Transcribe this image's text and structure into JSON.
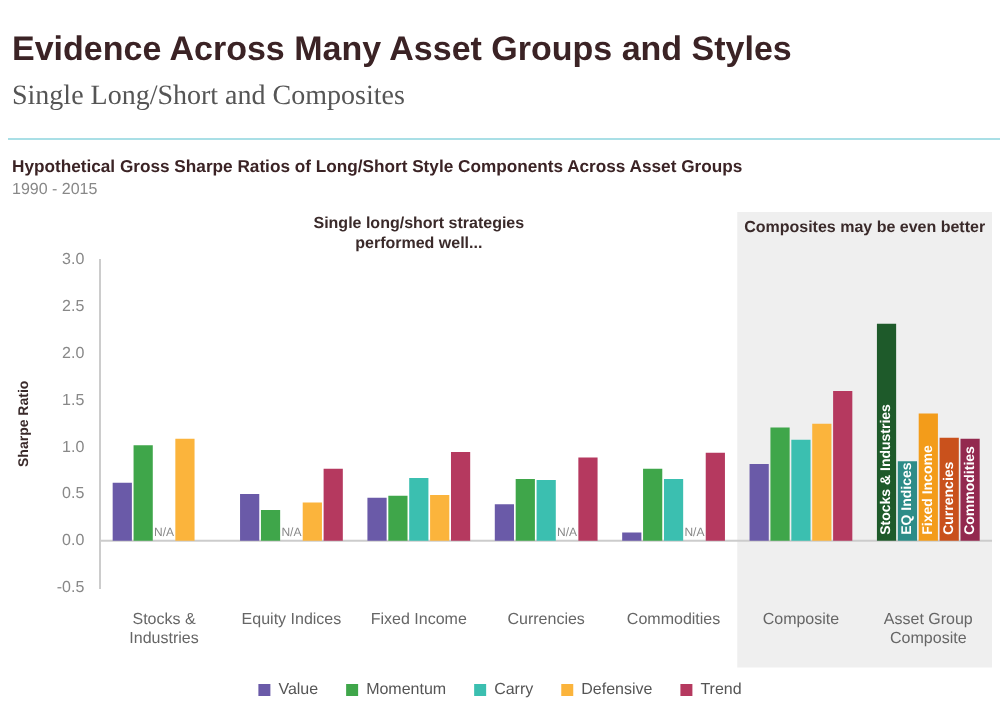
{
  "chart_data": {
    "type": "bar",
    "title": "Evidence Across Many Asset Groups and Styles",
    "subtitle": "Single Long/Short and Composites",
    "annotations": [
      "Hypothetical Gross Sharpe Ratios of Long/Short Style Components Across Asset Groups",
      "1990 - 2015",
      "Single long/short strategies performed well..."
    ],
    "ylabel": "Sharpe Ratio",
    "categories": [
      "Stocks & Industries",
      "Equity Indices",
      "Fixed Income",
      "Currencies",
      "Commodities",
      "Composite",
      "Asset Group Composite"
    ],
    "series": [
      {
        "name": "Value",
        "color": "#6a5aa8",
        "values": [
          0.62,
          0.5,
          0.46,
          0.39,
          0.09,
          0.82,
          null
        ]
      },
      {
        "name": "Momentum",
        "color": "#3fa64a",
        "values": [
          1.02,
          0.33,
          0.48,
          0.66,
          0.77,
          1.21,
          null
        ]
      },
      {
        "name": "Carry",
        "color": "#3bbfb0",
        "values": [
          null,
          null,
          0.67,
          0.65,
          0.66,
          1.08,
          null
        ],
        "value_labels": [
          "N/A",
          "N/A",
          null,
          null,
          null,
          null,
          null
        ]
      },
      {
        "name": "Defensive",
        "color": "#fbb43c",
        "values": [
          1.09,
          0.41,
          0.49,
          null,
          null,
          1.25,
          null
        ],
        "value_labels": [
          null,
          null,
          null,
          "N/A",
          "N/A",
          null,
          null
        ]
      },
      {
        "name": "Trend",
        "color": "#b5395f",
        "values": [
          null,
          0.77,
          0.95,
          0.89,
          0.94,
          1.6,
          null
        ]
      },
      {
        "name": "Stocks & Industries",
        "color": "#1e5a2a",
        "values": [
          null,
          null,
          null,
          null,
          null,
          null,
          2.32
        ]
      },
      {
        "name": "EQ Indices",
        "color": "#2d8c88",
        "values": [
          null,
          null,
          null,
          null,
          null,
          null,
          0.85
        ]
      },
      {
        "name": "Fixed Income",
        "color": "#f39c1a",
        "values": [
          null,
          null,
          null,
          null,
          null,
          null,
          1.36
        ]
      },
      {
        "name": "Currencies",
        "color": "#c9511c",
        "values": [
          null,
          null,
          null,
          null,
          null,
          null,
          1.1
        ]
      },
      {
        "name": "Commodities",
        "color": "#93294f",
        "values": [
          null,
          null,
          null,
          null,
          null,
          null,
          1.09
        ]
      }
    ],
    "bands": [
      {
        "axis": "x",
        "from": "Composite",
        "to": "Asset Group Composite",
        "label": "Composites may be even better",
        "color": "#efefef"
      }
    ],
    "ylim": [
      -0.5,
      3
    ],
    "yticks": [
      {
        "value": -0.5,
        "label": "-0.5"
      },
      {
        "value": 0,
        "label": "0.0"
      },
      {
        "value": 0.5,
        "label": "0.5"
      },
      {
        "value": 1,
        "label": "1.0"
      },
      {
        "value": 1.5,
        "label": "1.5"
      },
      {
        "value": 2,
        "label": "2.0"
      },
      {
        "value": 2.5,
        "label": "2.5"
      },
      {
        "value": 3,
        "label": "3.0"
      }
    ],
    "ref_lines": [
      {
        "axis": "y",
        "value": 0,
        "color": "#cccccc"
      }
    ],
    "grid": false,
    "legend": "bottom"
  }
}
